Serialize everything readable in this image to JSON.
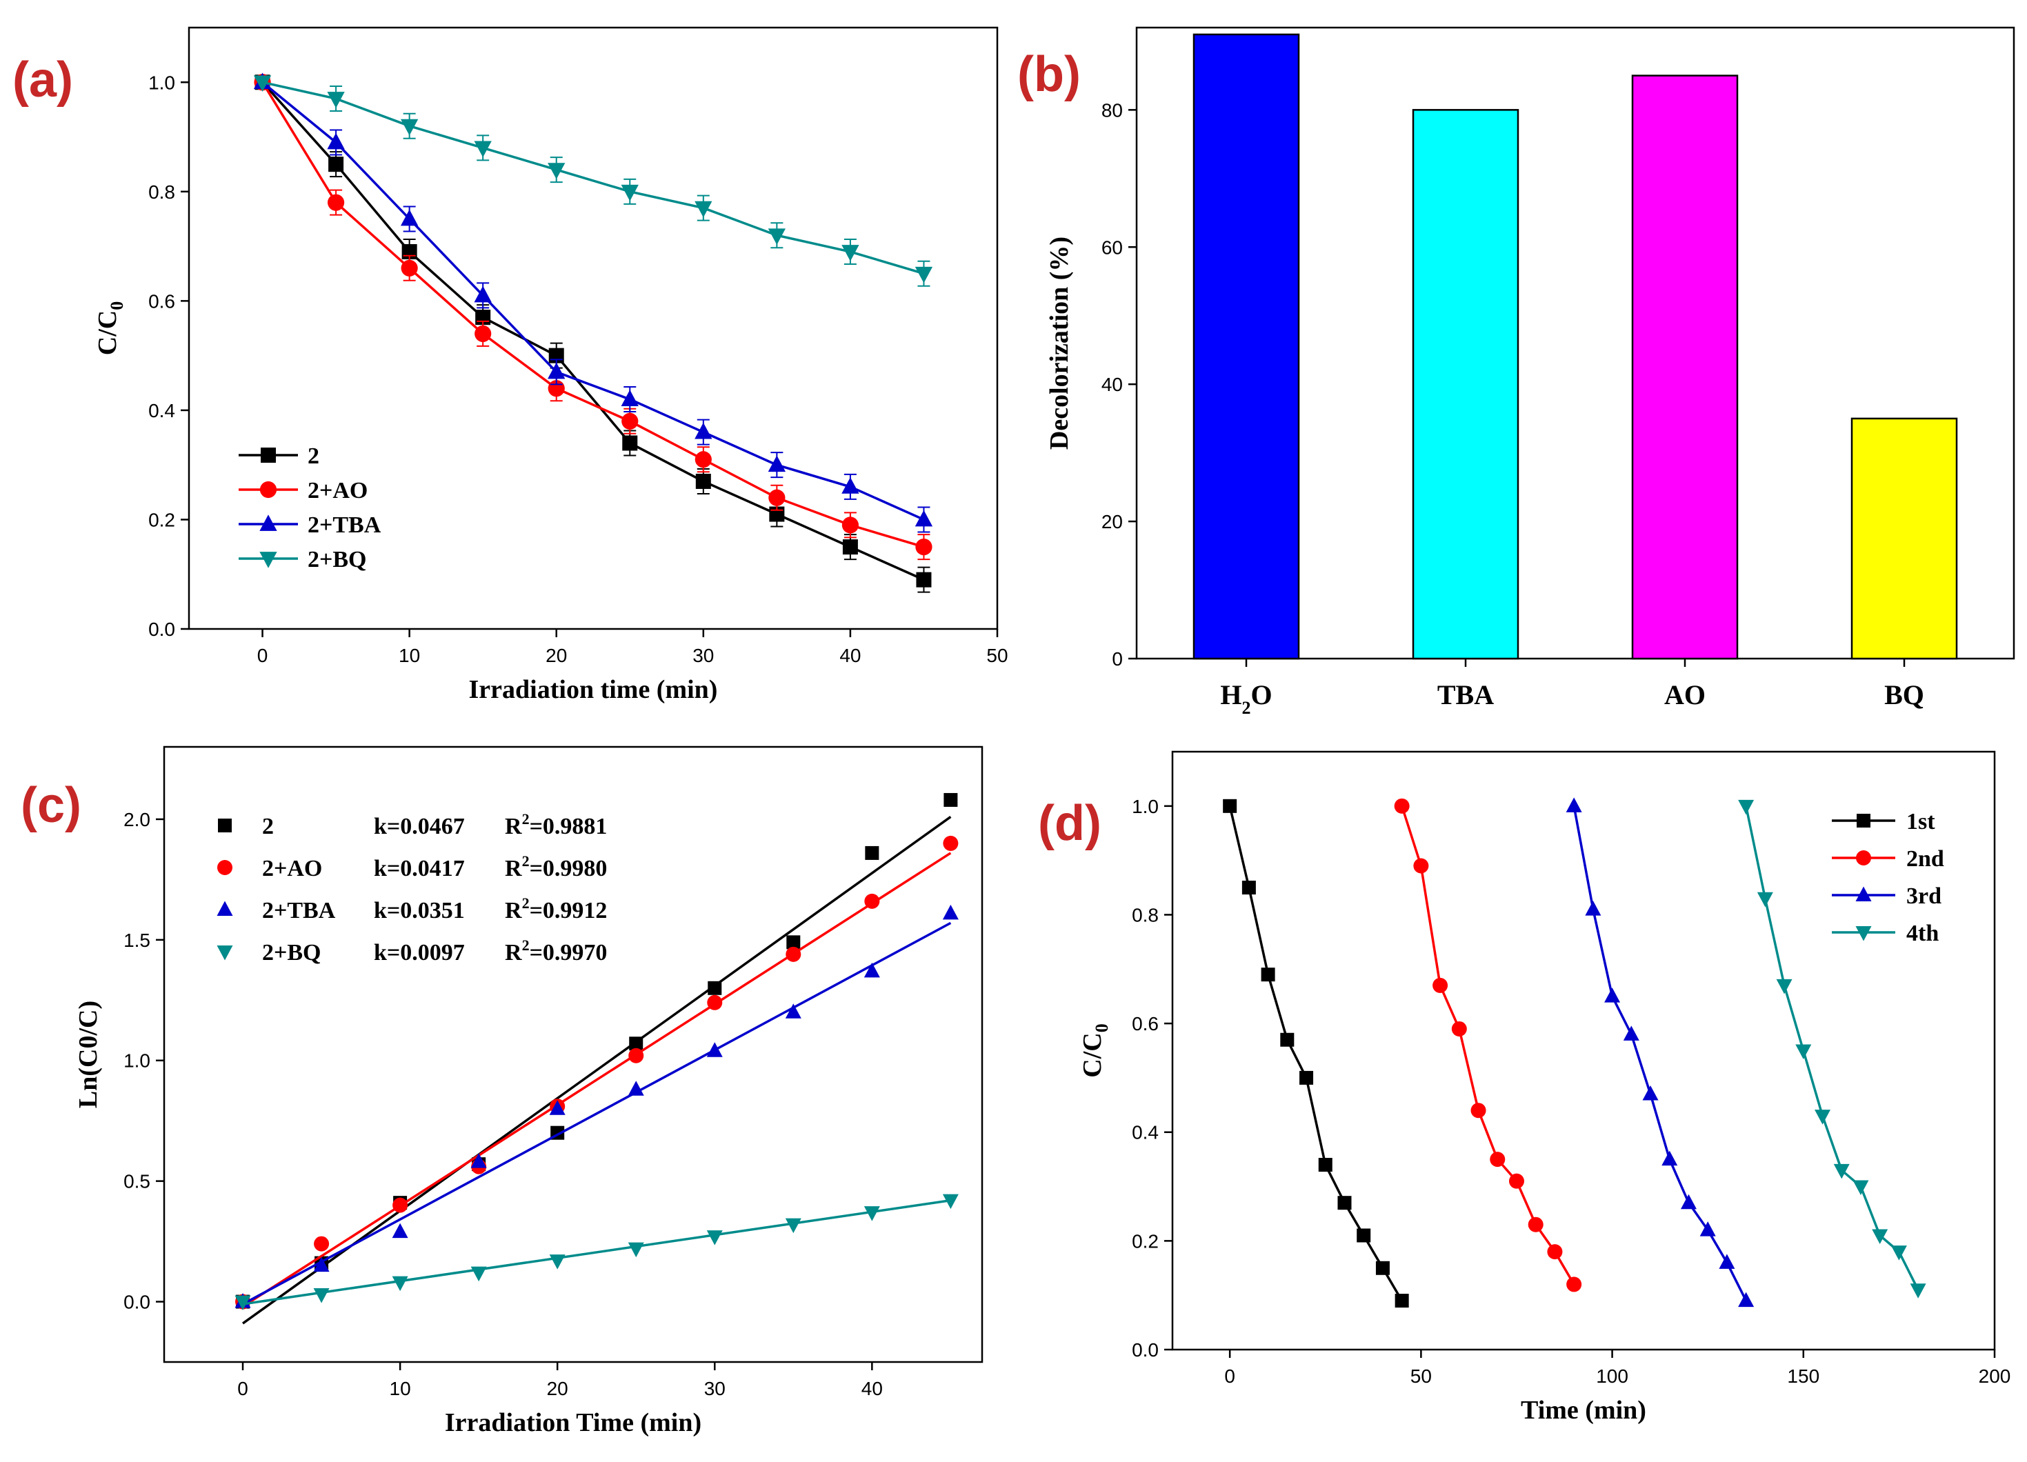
{
  "chart_data": [
    {
      "panel": "(a)",
      "type": "line",
      "xlabel": "Irradiation time (min)",
      "ylabel": "C/C0",
      "xlim": [
        -5,
        50
      ],
      "ylim": [
        0,
        1.1
      ],
      "xticks": [
        0,
        10,
        20,
        30,
        40,
        50
      ],
      "yticks": [
        0.0,
        0.2,
        0.4,
        0.6,
        0.8,
        1.0
      ],
      "x": [
        0,
        5,
        10,
        15,
        20,
        25,
        30,
        35,
        40,
        45
      ],
      "legend_position": "lower-left",
      "series": [
        {
          "name": "2",
          "color": "#000000",
          "marker": "square",
          "values": [
            1.0,
            0.85,
            0.69,
            0.57,
            0.5,
            0.34,
            0.27,
            0.21,
            0.15,
            0.09
          ]
        },
        {
          "name": "2+AO",
          "color": "#ff0000",
          "marker": "circle",
          "values": [
            1.0,
            0.78,
            0.66,
            0.54,
            0.44,
            0.38,
            0.31,
            0.24,
            0.19,
            0.15
          ]
        },
        {
          "name": "2+TBA",
          "color": "#0000cc",
          "marker": "triangle-up",
          "values": [
            1.0,
            0.89,
            0.75,
            0.61,
            0.47,
            0.42,
            0.36,
            0.3,
            0.26,
            0.2
          ]
        },
        {
          "name": "2+BQ",
          "color": "#008b8b",
          "marker": "triangle-down",
          "values": [
            1.0,
            0.97,
            0.92,
            0.88,
            0.84,
            0.8,
            0.77,
            0.72,
            0.69,
            0.65
          ]
        }
      ]
    },
    {
      "panel": "(b)",
      "type": "bar",
      "xlabel": "",
      "ylabel": "Decolorization (%)",
      "ylim": [
        0,
        92
      ],
      "yticks": [
        0,
        20,
        40,
        60,
        80
      ],
      "categories": [
        "H",
        "TBA",
        "AO",
        "BQ"
      ],
      "category_subscripts": [
        "2",
        "",
        "",
        ""
      ],
      "category_suffixes": [
        "O",
        "",
        "",
        ""
      ],
      "values": [
        91,
        80,
        85,
        35
      ],
      "colors": [
        "#0000ff",
        "#00ffff",
        "#ff00ff",
        "#ffff00"
      ]
    },
    {
      "panel": "(c)",
      "type": "scatter",
      "xlabel": "Irradiation Time (min)",
      "ylabel": "Ln(C0/C)",
      "xlim": [
        -5,
        47
      ],
      "ylim": [
        -0.25,
        2.3
      ],
      "xticks": [
        0,
        10,
        20,
        30,
        40
      ],
      "yticks": [
        0.0,
        0.5,
        1.0,
        1.5,
        2.0
      ],
      "x": [
        0,
        5,
        10,
        15,
        20,
        25,
        30,
        35,
        40,
        45
      ],
      "legend_position": "top-left",
      "series": [
        {
          "name": "2",
          "k_label": "k=0.0467",
          "r2_prefix": "R",
          "r2_sup": "2",
          "r2_value": "=0.9881",
          "color": "#000000",
          "marker": "square",
          "values": [
            0.0,
            0.16,
            0.41,
            0.57,
            0.7,
            1.07,
            1.3,
            1.49,
            1.86,
            2.08
          ],
          "fit": [
            -0.09,
            2.01
          ]
        },
        {
          "name": "2+AO",
          "k_label": "k=0.0417",
          "r2_prefix": "R",
          "r2_sup": "2",
          "r2_value": "=0.9980",
          "color": "#ff0000",
          "marker": "circle",
          "values": [
            0.0,
            0.24,
            0.4,
            0.56,
            0.81,
            1.02,
            1.24,
            1.44,
            1.66,
            1.9
          ],
          "fit": [
            -0.02,
            1.86
          ]
        },
        {
          "name": "2+TBA",
          "k_label": "k=0.0351",
          "r2_prefix": "R",
          "r2_sup": "2",
          "r2_value": "=0.9912",
          "color": "#0000cc",
          "marker": "triangle-up",
          "values": [
            0.0,
            0.15,
            0.29,
            0.58,
            0.8,
            0.88,
            1.04,
            1.2,
            1.37,
            1.61
          ],
          "fit": [
            -0.01,
            1.57
          ]
        },
        {
          "name": "2+BQ",
          "k_label": "k=0.0097",
          "r2_prefix": "R",
          "r2_sup": "2",
          "r2_value": "=0.9970",
          "color": "#008b8b",
          "marker": "triangle-down",
          "values": [
            0.0,
            0.03,
            0.08,
            0.12,
            0.17,
            0.22,
            0.27,
            0.32,
            0.37,
            0.42
          ],
          "fit": [
            -0.01,
            0.42
          ]
        }
      ]
    },
    {
      "panel": "(d)",
      "type": "line",
      "xlabel": "Time (min)",
      "ylabel": "C/C0",
      "xlim": [
        -15,
        200
      ],
      "ylim": [
        0,
        1.1
      ],
      "xticks": [
        0,
        50,
        100,
        150,
        200
      ],
      "yticks": [
        0.0,
        0.2,
        0.4,
        0.6,
        0.8,
        1.0
      ],
      "legend_position": "top-right",
      "series": [
        {
          "name": "1st",
          "color": "#000000",
          "marker": "square",
          "x": [
            0,
            5,
            10,
            15,
            20,
            25,
            30,
            35,
            40,
            45
          ],
          "values": [
            1.0,
            0.85,
            0.69,
            0.57,
            0.5,
            0.34,
            0.27,
            0.21,
            0.15,
            0.09
          ]
        },
        {
          "name": "2nd",
          "color": "#ff0000",
          "marker": "circle",
          "x": [
            45,
            50,
            55,
            60,
            65,
            70,
            75,
            80,
            85,
            90
          ],
          "values": [
            1.0,
            0.89,
            0.67,
            0.59,
            0.44,
            0.35,
            0.31,
            0.23,
            0.18,
            0.12
          ]
        },
        {
          "name": "3rd",
          "color": "#0000cc",
          "marker": "triangle-up",
          "x": [
            90,
            95,
            100,
            105,
            110,
            115,
            120,
            125,
            130,
            135
          ],
          "values": [
            1.0,
            0.81,
            0.65,
            0.58,
            0.47,
            0.35,
            0.27,
            0.22,
            0.16,
            0.09
          ]
        },
        {
          "name": "4th",
          "color": "#008b8b",
          "marker": "triangle-down",
          "x": [
            135,
            140,
            145,
            150,
            155,
            160,
            165,
            170,
            175,
            180
          ],
          "values": [
            1.0,
            0.83,
            0.67,
            0.55,
            0.43,
            0.33,
            0.3,
            0.21,
            0.18,
            0.11
          ]
        }
      ]
    }
  ]
}
